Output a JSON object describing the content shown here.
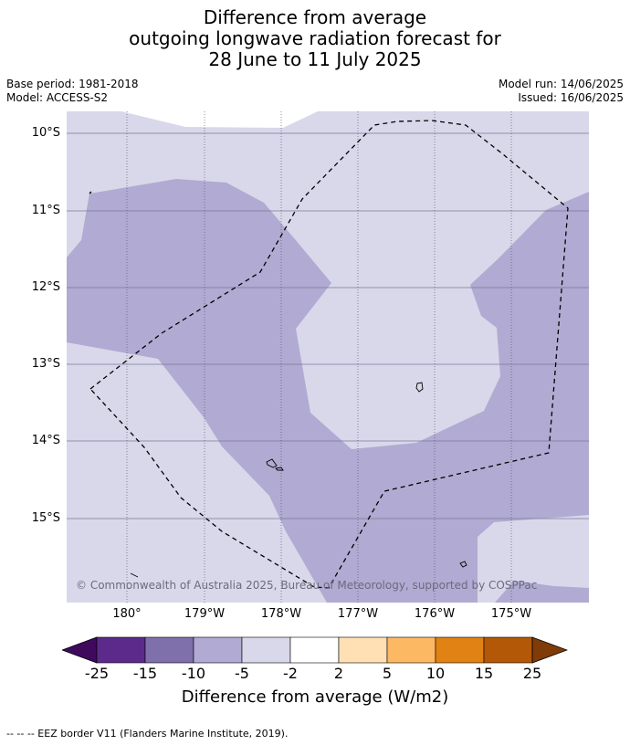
{
  "title": {
    "line1": "Difference from average",
    "line2": "outgoing longwave radiation forecast for",
    "line3": "28 June to 11 July 2025"
  },
  "meta": {
    "base_period": "Base period: 1981-2018",
    "model": "Model: ACCESS-S2",
    "model_run": "Model run: 14/06/2025",
    "issued": "Issued: 16/06/2025"
  },
  "map": {
    "lat_labels": [
      "10°S",
      "11°S",
      "12°S",
      "13°S",
      "14°S",
      "15°S"
    ],
    "lon_labels": [
      "180°",
      "179°W",
      "178°W",
      "177°W",
      "176°W",
      "175°W"
    ],
    "copyright": "© Commonwealth of Australia 2025, Bureau of Meteorology, supported by COSPPac",
    "colors": {
      "land_bg": "#d8d8ea",
      "band_neg5_10": "#b1aad2",
      "white": "#ffffff",
      "grid": "#7a7a9a"
    }
  },
  "colorbar": {
    "label": "Difference from average (W/m2)",
    "ticks": [
      "-25",
      "-15",
      "-10",
      "-5",
      "-2",
      "2",
      "5",
      "10",
      "15",
      "25"
    ],
    "colors": [
      "#3f0a5e",
      "#5b2a8a",
      "#7f6fab",
      "#b1aad2",
      "#d8d8ea",
      "#ffffff",
      "#fee0b4",
      "#fdb863",
      "#e08214",
      "#b35806",
      "#7f3b08"
    ]
  },
  "footer": {
    "legend": "--  --  -- EEZ border V11 (Flanders Marine Institute, 2019)."
  }
}
